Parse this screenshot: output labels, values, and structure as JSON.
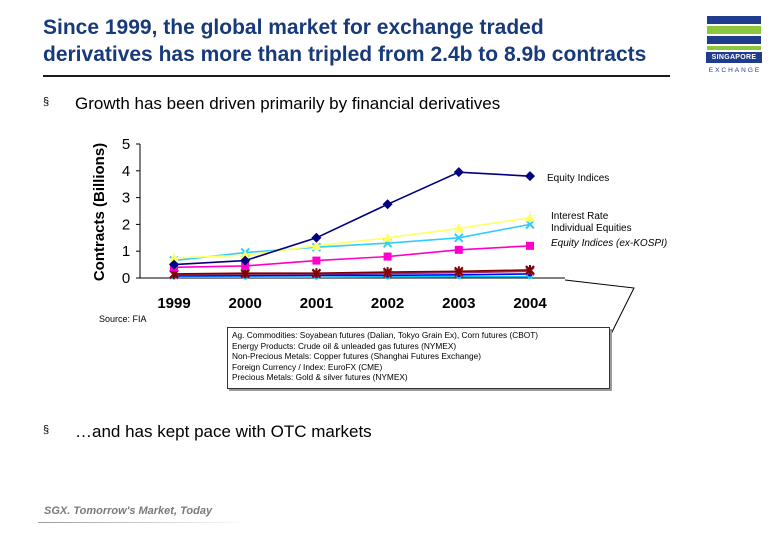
{
  "header": {
    "title_line1": "Since 1999, the global market for exchange traded",
    "title_line2": "derivatives has more than tripled from 2.4b to 8.9b contracts"
  },
  "logo": {
    "name": "sgx-logo",
    "text1": "SINGAPORE",
    "text2": "EXCHANGE",
    "color": "#1f3d8c",
    "accent": "#8cc63f"
  },
  "bullets": [
    {
      "mark": "§",
      "text": "Growth has been driven primarily by financial derivatives"
    },
    {
      "mark": "§",
      "text": "…and has kept pace with OTC markets"
    }
  ],
  "source": "Source: FIA",
  "notes": [
    "Ag. Commodities: Soyabean futures (Dalian, Tokyo Grain Ex), Corn futures (CBOT)",
    "Energy Products: Crude oil & unleaded gas futures (NYMEX)",
    "Non-Precious Metals: Copper futures (Shanghai Futures Exchange)",
    "Foreign Currency / Index: EuroFX (CME)",
    "Precious Metals: Gold & silver futures (NYMEX)"
  ],
  "footer": "SGX. Tomorrow's Market, Today",
  "chart_data": {
    "type": "line",
    "title": "",
    "xlabel": "",
    "ylabel": "Contracts (Billions)",
    "x": [
      "1999",
      "2000",
      "2001",
      "2002",
      "2003",
      "2004"
    ],
    "ylim": [
      0,
      5
    ],
    "yticks": [
      "0",
      "1",
      "2",
      "3",
      "4",
      "5"
    ],
    "grid": false,
    "series": [
      {
        "name": "Equity Indices",
        "color": "#000080",
        "marker": "diamond",
        "labeled": true,
        "values": [
          0.5,
          0.65,
          1.5,
          2.75,
          3.95,
          3.8
        ]
      },
      {
        "name": "Interest Rate",
        "color": "#ffff66",
        "marker": "triangle",
        "labeled": true,
        "values": [
          0.75,
          0.85,
          1.2,
          1.5,
          1.85,
          2.25
        ]
      },
      {
        "name": "Individual Equities",
        "color": "#33ccff",
        "marker": "x",
        "labeled": true,
        "values": [
          0.65,
          0.95,
          1.15,
          1.3,
          1.5,
          2.0
        ]
      },
      {
        "name": "Equity Indices (ex-KOSPI)",
        "color": "#ff00cc",
        "marker": "square",
        "labeled": true,
        "values": [
          0.4,
          0.45,
          0.65,
          0.8,
          1.05,
          1.2
        ]
      },
      {
        "color": "#800000",
        "marker": "asterisk",
        "labeled": false,
        "values": [
          0.15,
          0.18,
          0.18,
          0.22,
          0.25,
          0.3
        ]
      },
      {
        "color": "#993366",
        "marker": "x",
        "labeled": false,
        "values": [
          0.12,
          0.14,
          0.15,
          0.17,
          0.2,
          0.25
        ]
      },
      {
        "color": "#0000ff",
        "marker": "dot",
        "labeled": false,
        "values": [
          0.08,
          0.09,
          0.1,
          0.1,
          0.12,
          0.15
        ]
      },
      {
        "color": "#00ccff",
        "marker": "dot",
        "labeled": false,
        "values": [
          0.03,
          0.03,
          0.03,
          0.04,
          0.05,
          0.05
        ]
      }
    ]
  }
}
